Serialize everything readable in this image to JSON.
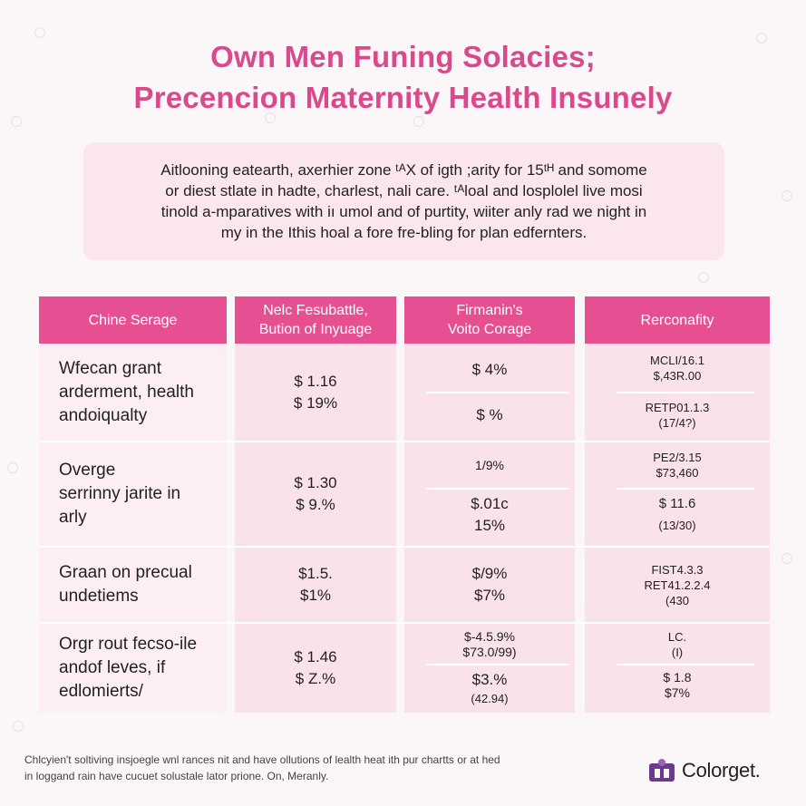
{
  "title": {
    "line1": "Own Men Funing Solacies;",
    "line2": "Precencion Maternity Health Insunely"
  },
  "intro": {
    "lines": [
      "Aitlooning eatearth, axerhier zone ᵗᴬX of igth ;arity for 15ᵗᴴ and somome",
      "or diest stlate in hadte, charlest, nali care. ᵗᴬloal and losplolel live mosi",
      "tinold a-mparatives with iı umol and of purtity, wiiter anly rad we night in",
      "my in the Ithis hoal a fore fre-bling for plan edfernters."
    ]
  },
  "table": {
    "headers": [
      [
        "Chine Serage"
      ],
      [
        "Nelc Fesubattle,",
        "Bution of Inyuage"
      ],
      [
        "Firmanin's",
        "Voito Corage"
      ],
      [
        "Rerconafity"
      ]
    ],
    "rows": [
      {
        "label": [
          "Wfecan grant",
          "arderment, health",
          "andoiqualty"
        ],
        "col2": [
          "$ 1.16",
          "$ 19%"
        ],
        "col3_top": [
          "$ 4%"
        ],
        "col3_bottom": [
          "$  %"
        ],
        "col4_top": [
          "MCLI/16.1",
          "$,43R.00"
        ],
        "col4_bottom": [
          "RETP01.1.3",
          "(17/4?)"
        ]
      },
      {
        "label": [
          "Overge",
          "serrinny jarite in",
          "arly"
        ],
        "col2": [
          "$ 1.30",
          "$ 9.%"
        ],
        "col3_top": [
          "1/9%"
        ],
        "col3_bottom": [
          "$.01c",
          "15%"
        ],
        "col4_top": [
          "PE2/3.15",
          "$73,460"
        ],
        "col4_bottom": [
          "$ 11.6",
          "(13/30)"
        ]
      },
      {
        "label": [
          "Graan on precual",
          "undetiems"
        ],
        "col2": [
          "$1.5.",
          "$1%"
        ],
        "col3_top": [
          "$/9%",
          "$7%"
        ],
        "col4_top": [
          "FIST4.3.3",
          "RET41.2.2.4",
          "(430"
        ]
      },
      {
        "label": [
          "Orgr rout fecso-ile",
          "andof leves, if",
          "edlomierts/"
        ],
        "col2": [
          "$ 1.46",
          "$ Z.%"
        ],
        "col3_top": [
          "$-4.5.9%",
          "$73.0/99)"
        ],
        "col3_bottom": [
          "$3.%",
          "(42.94)"
        ],
        "col4_top": [
          "LC.",
          "(I)"
        ],
        "col4_bottom": [
          "$ 1.8",
          "$7%"
        ]
      }
    ]
  },
  "footer": {
    "lines": [
      "Chlcyien't soltiving insjoegle wnl rances nit and have ollutions of lealth heat ith pur chartts or at hed",
      "in loggand rain have cucuet solustale lator prione. On, Meranly."
    ]
  },
  "brand": {
    "name": "Colorget.",
    "color": "#6b3a8e"
  },
  "colors": {
    "accent": "#e74f93",
    "title": "#d94a8c",
    "panel": "#fbe6ee"
  }
}
